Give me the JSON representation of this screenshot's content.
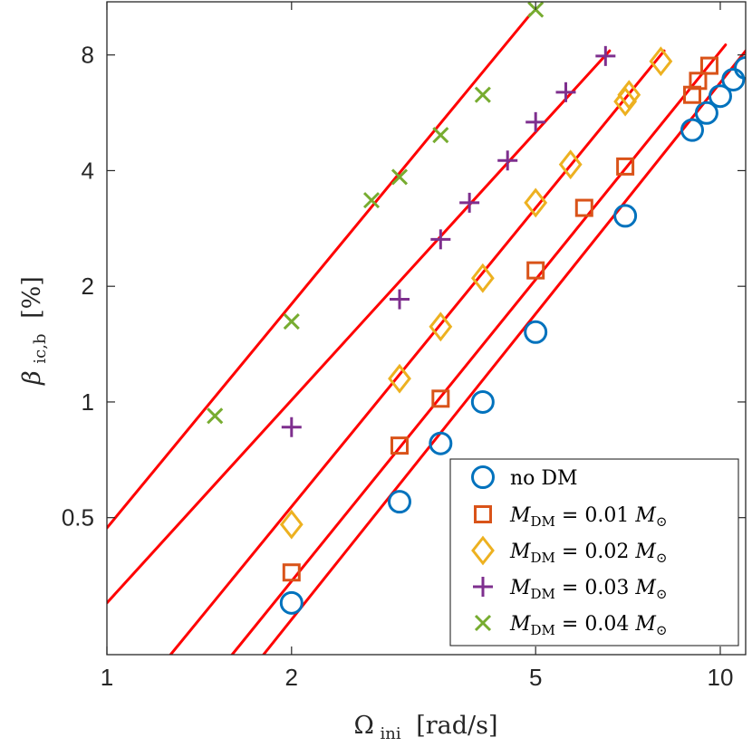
{
  "chart_data": {
    "type": "scatter",
    "title": "",
    "xlabel": "Ω_ini [rad/s]",
    "xlabel_parts": {
      "symbol": "Ω",
      "subscript": "ini",
      "unit": "[rad/s]"
    },
    "ylabel": "β_ic,b [%]",
    "ylabel_parts": {
      "symbol": "β",
      "subscript": "ic,b",
      "unit": "[%]"
    },
    "x_scale": "log",
    "y_scale": "log",
    "xlim": [
      1,
      11
    ],
    "ylim": [
      0.22,
      11
    ],
    "x_ticks": [
      1,
      2,
      5,
      10
    ],
    "x_tick_labels": [
      "1",
      "2",
      "5",
      "10"
    ],
    "y_ticks": [
      0.5,
      1,
      2,
      4,
      8
    ],
    "y_tick_labels": [
      "0.5",
      "1",
      "2",
      "4",
      "8"
    ],
    "grid": false,
    "legend_position": "bottom-right",
    "series": [
      {
        "name": "no DM",
        "label_main": "no DM",
        "marker": "circle",
        "color": "#0072BD",
        "x": [
          2,
          3,
          3.5,
          4.1,
          5,
          7,
          9,
          9.5,
          10,
          10.5,
          11
        ],
        "y": [
          0.3,
          0.55,
          0.78,
          1.0,
          1.52,
          3.05,
          5.1,
          5.65,
          6.25,
          6.9,
          7.4
        ],
        "fit_x": [
          1.8,
          11
        ],
        "fit_y": [
          0.22,
          8.2
        ]
      },
      {
        "name": "M_DM = 0.01 M_⊙",
        "label_main": "M",
        "label_sub": "DM",
        "label_eq": " = 0.01 ",
        "label_m": "M",
        "label_sun": "⊙",
        "marker": "square",
        "color": "#D95319",
        "x": [
          2,
          3,
          3.5,
          5,
          6,
          7,
          9,
          9.2,
          9.6
        ],
        "y": [
          0.36,
          0.77,
          1.02,
          2.2,
          3.2,
          4.1,
          6.3,
          6.85,
          7.5
        ],
        "fit_x": [
          1.6,
          10.2
        ],
        "fit_y": [
          0.22,
          8.5
        ]
      },
      {
        "name": "M_DM = 0.02 M_⊙",
        "label_main": "M",
        "label_sub": "DM",
        "label_eq": " = 0.02 ",
        "label_m": "M",
        "label_sun": "⊙",
        "marker": "diamond",
        "color": "#EDB120",
        "x": [
          2,
          3,
          3.5,
          4.1,
          5,
          5.7,
          7,
          7.1,
          8
        ],
        "y": [
          0.48,
          1.15,
          1.57,
          2.1,
          3.3,
          4.15,
          6.05,
          6.3,
          7.7
        ],
        "fit_x": [
          1.27,
          8.1
        ],
        "fit_y": [
          0.22,
          8.2
        ]
      },
      {
        "name": "M_DM = 0.03 M_⊙",
        "label_main": "M",
        "label_sub": "DM",
        "label_eq": " = 0.03 ",
        "label_m": "M",
        "label_sun": "⊙",
        "marker": "plus",
        "color": "#7E2F8E",
        "x": [
          2,
          3,
          3.5,
          3.9,
          4.5,
          5,
          5.6,
          6.5
        ],
        "y": [
          0.86,
          1.85,
          2.65,
          3.3,
          4.25,
          5.35,
          6.4,
          7.95
        ],
        "fit_x": [
          1,
          6.6
        ],
        "fit_y": [
          0.3,
          8.2
        ]
      },
      {
        "name": "M_DM = 0.04 M_⊙",
        "label_main": "M",
        "label_sub": "DM",
        "label_eq": " = 0.04 ",
        "label_m": "M",
        "label_sun": "⊙",
        "marker": "x",
        "color": "#77AC30",
        "x": [
          1.5,
          2,
          2.7,
          3,
          3.5,
          4.1,
          5
        ],
        "y": [
          0.92,
          1.62,
          3.35,
          3.85,
          4.95,
          6.3,
          10.5
        ],
        "fit_x": [
          1,
          4.9
        ],
        "fit_y": [
          0.47,
          10.2
        ]
      }
    ],
    "fit_line_color": "#FF0000"
  }
}
